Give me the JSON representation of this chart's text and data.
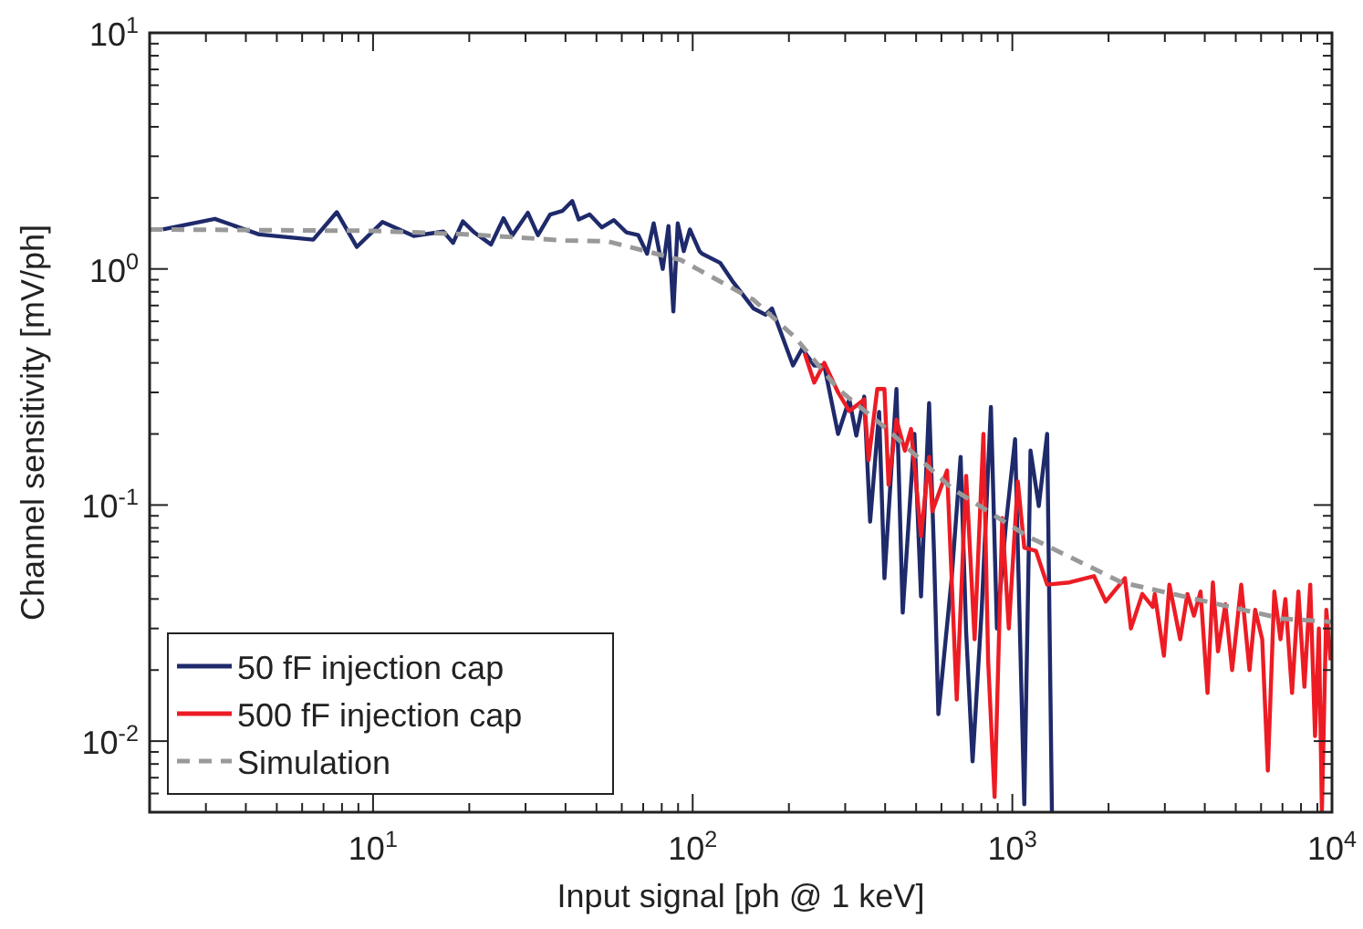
{
  "chart_data": {
    "type": "line",
    "xlabel": "Input signal [ph @ 1 keV]",
    "ylabel": "Channel sensitivity [mV/ph]",
    "log": "xy",
    "xlim": [
      2,
      10000
    ],
    "ylim": [
      0.005,
      10
    ],
    "xticks": [
      {
        "value": 2,
        "label": null
      },
      {
        "value": 3,
        "label": null
      },
      {
        "value": 4,
        "label": null
      },
      {
        "value": 5,
        "label": null
      },
      {
        "value": 6,
        "label": null
      },
      {
        "value": 7,
        "label": null
      },
      {
        "value": 8,
        "label": null
      },
      {
        "value": 9,
        "label": null
      },
      {
        "value": 10,
        "label": "10$^{1}$"
      },
      {
        "value": 20,
        "label": null
      },
      {
        "value": 30,
        "label": null
      },
      {
        "value": 40,
        "label": null
      },
      {
        "value": 50,
        "label": null
      },
      {
        "value": 60,
        "label": null
      },
      {
        "value": 70,
        "label": null
      },
      {
        "value": 80,
        "label": null
      },
      {
        "value": 90,
        "label": null
      },
      {
        "value": 100,
        "label": "10$^{2}$"
      },
      {
        "value": 200,
        "label": null
      },
      {
        "value": 300,
        "label": null
      },
      {
        "value": 400,
        "label": null
      },
      {
        "value": 500,
        "label": null
      },
      {
        "value": 600,
        "label": null
      },
      {
        "value": 700,
        "label": null
      },
      {
        "value": 800,
        "label": null
      },
      {
        "value": 900,
        "label": null
      },
      {
        "value": 1000,
        "label": "10$^{3}$"
      },
      {
        "value": 2000,
        "label": null
      },
      {
        "value": 3000,
        "label": null
      },
      {
        "value": 4000,
        "label": null
      },
      {
        "value": 5000,
        "label": null
      },
      {
        "value": 6000,
        "label": null
      },
      {
        "value": 7000,
        "label": null
      },
      {
        "value": 8000,
        "label": null
      },
      {
        "value": 9000,
        "label": null
      },
      {
        "value": 10000,
        "label": "10$^{4}$"
      }
    ],
    "yticks": [
      {
        "value": 0.006,
        "label": null
      },
      {
        "value": 0.007,
        "label": null
      },
      {
        "value": 0.008,
        "label": null
      },
      {
        "value": 0.009,
        "label": null
      },
      {
        "value": 0.01,
        "label": "10$^{-2}$"
      },
      {
        "value": 0.02,
        "label": null
      },
      {
        "value": 0.03,
        "label": null
      },
      {
        "value": 0.04,
        "label": null
      },
      {
        "value": 0.05,
        "label": null
      },
      {
        "value": 0.06,
        "label": null
      },
      {
        "value": 0.07,
        "label": null
      },
      {
        "value": 0.08,
        "label": null
      },
      {
        "value": 0.09,
        "label": null
      },
      {
        "value": 0.1,
        "label": "10$^{-1}$"
      },
      {
        "value": 0.2,
        "label": null
      },
      {
        "value": 0.3,
        "label": null
      },
      {
        "value": 0.4,
        "label": null
      },
      {
        "value": 0.5,
        "label": null
      },
      {
        "value": 0.6,
        "label": null
      },
      {
        "value": 0.7,
        "label": null
      },
      {
        "value": 0.8,
        "label": null
      },
      {
        "value": 0.9,
        "label": null
      },
      {
        "value": 1,
        "label": "10$^{0}$"
      },
      {
        "value": 2,
        "label": null
      },
      {
        "value": 3,
        "label": null
      },
      {
        "value": 4,
        "label": null
      },
      {
        "value": 5,
        "label": null
      },
      {
        "value": 6,
        "label": null
      },
      {
        "value": 7,
        "label": null
      },
      {
        "value": 8,
        "label": null
      },
      {
        "value": 9,
        "label": null
      },
      {
        "value": 10,
        "label": "10$^{1}$"
      }
    ],
    "grid": false,
    "legend": "bottom left",
    "series": [
      {
        "name": "50 fF injection cap",
        "color": "#1f2a6b",
        "line_style": "solid",
        "x": [
          2.2,
          3.2,
          4.4,
          6.5,
          7.7,
          8.9,
          10.7,
          13.4,
          16.6,
          17.8,
          19.1,
          20.7,
          23.4,
          25.6,
          27.3,
          30.5,
          32.8,
          35.8,
          39.1,
          42,
          44,
          47.6,
          52,
          56.7,
          62,
          67.6,
          72,
          75.5,
          80.6,
          84,
          87,
          89.8,
          93.8,
          98,
          105,
          107,
          122,
          133,
          155,
          169,
          177,
          206,
          220,
          240,
          258,
          285,
          309,
          325,
          344,
          359,
          383,
          398,
          434,
          454,
          494,
          518,
          549,
          569,
          587,
          646,
          689,
          717,
          751,
          802,
          857,
          895,
          955,
          1020,
          1090,
          1140,
          1210,
          1285,
          1330
        ],
        "values": [
          1.47,
          1.63,
          1.4,
          1.33,
          1.74,
          1.24,
          1.58,
          1.38,
          1.44,
          1.29,
          1.59,
          1.43,
          1.27,
          1.64,
          1.39,
          1.73,
          1.39,
          1.7,
          1.76,
          1.94,
          1.62,
          1.7,
          1.5,
          1.61,
          1.43,
          1.39,
          1.16,
          1.56,
          1.0,
          1.52,
          0.66,
          1.56,
          1.19,
          1.47,
          1.19,
          1.16,
          1.06,
          0.89,
          0.68,
          0.64,
          0.68,
          0.39,
          0.46,
          0.39,
          0.39,
          0.2,
          0.28,
          0.197,
          0.288,
          0.085,
          0.248,
          0.049,
          0.31,
          0.035,
          0.2,
          0.041,
          0.27,
          0.062,
          0.013,
          0.049,
          0.16,
          0.029,
          0.0082,
          0.036,
          0.26,
          0.03,
          0.083,
          0.19,
          0.0054,
          0.17,
          0.099,
          0.2,
          0.005
        ]
      },
      {
        "name": "500 fF injection cap",
        "color": "#ed1c24",
        "line_style": "solid",
        "x": [
          224,
          240,
          258,
          285,
          309,
          344,
          355,
          378,
          398,
          410,
          434,
          461,
          482,
          518,
          549,
          562,
          625,
          670,
          717,
          762,
          812,
          840,
          880,
          930,
          975,
          1040,
          1090,
          1185,
          1285,
          1510,
          1800,
          1960,
          2250,
          2350,
          2550,
          2750,
          2790,
          2980,
          3100,
          3350,
          3530,
          3700,
          3880,
          4080,
          4240,
          4400,
          4640,
          4870,
          5200,
          5520,
          5750,
          6050,
          6300,
          6600,
          6900,
          7150,
          7500,
          7850,
          8200,
          8550,
          8850,
          9100,
          9300,
          9600,
          9900
        ],
        "values": [
          0.44,
          0.33,
          0.4,
          0.3,
          0.25,
          0.28,
          0.155,
          0.31,
          0.31,
          0.122,
          0.23,
          0.17,
          0.21,
          0.074,
          0.16,
          0.094,
          0.14,
          0.015,
          0.133,
          0.027,
          0.2,
          0.022,
          0.0058,
          0.088,
          0.03,
          0.126,
          0.066,
          0.064,
          0.046,
          0.047,
          0.05,
          0.039,
          0.049,
          0.03,
          0.042,
          0.037,
          0.042,
          0.023,
          0.046,
          0.027,
          0.042,
          0.034,
          0.043,
          0.016,
          0.047,
          0.024,
          0.038,
          0.02,
          0.046,
          0.02,
          0.036,
          0.027,
          0.0075,
          0.043,
          0.027,
          0.04,
          0.016,
          0.043,
          0.017,
          0.046,
          0.0105,
          0.03,
          0.005,
          0.036,
          0.022
        ]
      },
      {
        "name": "Simulation",
        "color": "#999999",
        "line_style": "dashed",
        "x": [
          2,
          10,
          20,
          40,
          54,
          92,
          155,
          210,
          285,
          405,
          645,
          1110,
          2200,
          7000,
          10000
        ],
        "values": [
          1.47,
          1.45,
          1.4,
          1.32,
          1.31,
          1.09,
          0.74,
          0.51,
          0.31,
          0.21,
          0.118,
          0.074,
          0.047,
          0.033,
          0.032
        ]
      }
    ]
  }
}
